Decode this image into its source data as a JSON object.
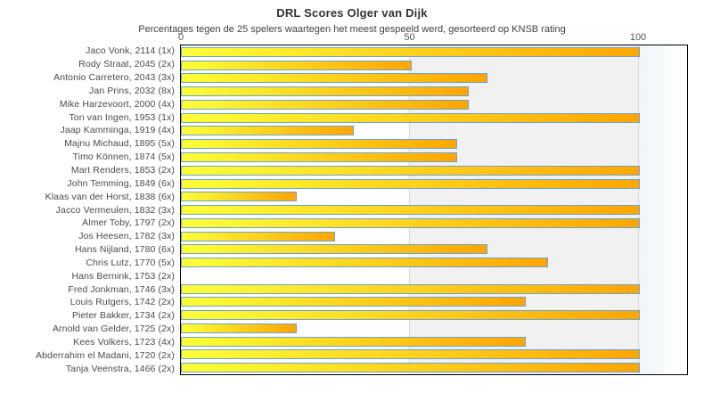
{
  "chart_data": {
    "type": "bar",
    "orientation": "horizontal",
    "title": "DRL Scores Olger van Dijk",
    "subtitle": "Percentages tegen de 25 spelers waartegen het meest gespeeld werd, gesorteerd op KNSB rating",
    "categories": [
      "Jaco Vonk, 2114 (1x)",
      "Rody Straat, 2045 (2x)",
      "Antonio Carretero, 2043 (3x)",
      "Jan Prins, 2032 (8x)",
      "Mike Harzevoort, 2000 (4x)",
      "Ton van Ingen, 1953 (1x)",
      "Jaap Kamminga, 1919 (4x)",
      "Majnu Michaud, 1895 (5x)",
      "Timo Können, 1874 (5x)",
      "Mart Renders, 1853 (2x)",
      "John Temming, 1849 (6x)",
      "Klaas van der Horst, 1838 (6x)",
      "Jacco Vermeulen, 1832 (3x)",
      "Almer Toby, 1797 (2x)",
      "Jos Heesen, 1782 (3x)",
      "Hans Nijland, 1780 (6x)",
      "Chris Lutz, 1770 (5x)",
      "Hans Bernink, 1753 (2x)",
      "Fred Jonkman, 1746 (3x)",
      "Louis Rutgers, 1742 (2x)",
      "Pieter Bakker, 1734 (2x)",
      "Arnold van Gelder, 1725 (2x)",
      "Kees Volkers, 1723 (4x)",
      "Abderrahim el Madani, 1720 (2x)",
      "Tanja Veenstra, 1466 (2x)"
    ],
    "values": [
      100,
      50,
      66.7,
      62.5,
      62.5,
      100,
      37.5,
      60,
      60,
      100,
      100,
      25,
      100,
      100,
      33.3,
      66.7,
      80,
      0,
      100,
      75,
      100,
      25,
      75,
      100,
      100
    ],
    "xlabel": "",
    "ylabel": "",
    "xticks": [
      0,
      50,
      100
    ],
    "xlim": [
      0,
      110
    ],
    "gridlines": "vertical at 50 and 100",
    "legend": "none",
    "colors": {
      "bar_gradient_start": "#fdff38",
      "bar_gradient_end": "#ffa502",
      "bar_border": "#6ba3ce",
      "band_white": "#ffffff",
      "band_gray": "#f1f1f1",
      "band_fade_right": "#eff4f7",
      "gridline": "#d9d9d9",
      "plot_border": "#000000",
      "text": "#4a4a4a"
    }
  }
}
